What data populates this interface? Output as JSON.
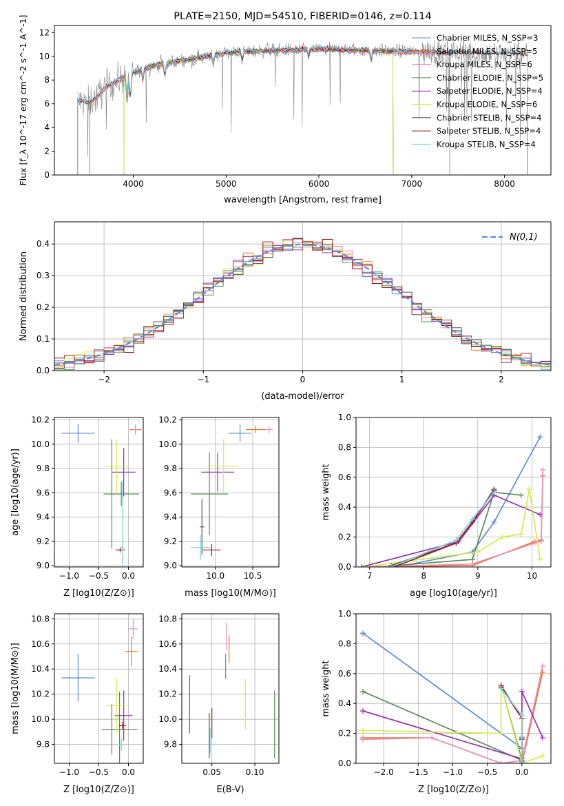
{
  "colors": {
    "chabrier_miles": "#5b8bd6",
    "salpeter_miles": "#e07a2b",
    "kroupa_miles": "#f08cc0",
    "chabrier_elodie": "#5a8a5a",
    "salpeter_elodie": "#9a2fb0",
    "kroupa_elodie": "#d6ec4a",
    "chabrier_stelib": "#555555",
    "salpeter_stelib": "#a01818",
    "kroupa_stelib": "#7dd3df",
    "data": "#808080"
  },
  "chart_data": [
    {
      "id": "spectrum",
      "type": "line",
      "title": "PLATE=2150, MJD=54510, FIBERID=0146, z=0.114",
      "xlabel": "wavelength [Angstrom, rest frame]",
      "ylabel": "Flux [f_λ 10^-17 erg cm^-2 s^-1 A^-1]",
      "xlim": [
        3150,
        8500
      ],
      "ylim": [
        0,
        12.6
      ],
      "xticks": [
        4000,
        5000,
        6000,
        7000,
        8000
      ],
      "yticks": [
        0,
        2,
        4,
        6,
        8,
        10,
        12
      ],
      "continuum": {
        "x": [
          3400,
          3500,
          3600,
          3700,
          3800,
          3900,
          4000,
          4200,
          4500,
          5000,
          5500,
          6000,
          6500,
          7000,
          7500,
          8000,
          8250
        ],
        "y": [
          6.3,
          6.0,
          6.5,
          7.4,
          7.8,
          8.2,
          8.6,
          9.2,
          9.6,
          10.3,
          10.5,
          10.6,
          10.5,
          10.4,
          10.3,
          10.2,
          10.1
        ]
      },
      "legend": [
        "Chabrier MILES, N_SSP=3",
        "Salpeter MILES, N_SSP=5",
        "Kroupa MILES, N_SSP=6",
        "Chabrier ELODIE, N_SSP=5",
        "Salpeter ELODIE, N_SSP=4",
        "Kroupa ELODIE, N_SSP=6",
        "Chabrier STELIB, N_SSP=4",
        "Salpeter STELIB, N_SSP=4",
        "Kroupa STELIB, N_SSP=4"
      ]
    },
    {
      "id": "residuals",
      "type": "bar",
      "xlabel": "(data-model)/error",
      "ylabel": "Normed distribution",
      "xlim": [
        -2.5,
        2.5
      ],
      "ylim": [
        0,
        0.47
      ],
      "xticks": [
        -2,
        -1,
        0,
        1,
        2
      ],
      "yticks": [
        0.0,
        0.1,
        0.2,
        0.3,
        0.4
      ],
      "legend": "N(0,1)",
      "bin_width": 0.1
    },
    {
      "id": "age_vs_Z",
      "type": "scatter",
      "xlabel": "Z [log10(Z/Z⊙)]",
      "ylabel": "age [log10(age/yr)]",
      "xlim": [
        -1.25,
        0.25
      ],
      "ylim": [
        8.99,
        10.22
      ],
      "xticks": [
        -1.0,
        -0.5,
        0.0
      ],
      "yticks": [
        9.0,
        9.2,
        9.4,
        9.6,
        9.8,
        10.0,
        10.2
      ],
      "points": [
        {
          "x": -0.85,
          "y": 10.09,
          "xerr": 0.28,
          "yerr": 0.08,
          "c": "chabrier_miles"
        },
        {
          "x": 0.12,
          "y": 10.12,
          "xerr": 0.1,
          "yerr": 0.04,
          "c": "salpeter_miles"
        },
        {
          "x": 0.12,
          "y": 10.12,
          "xerr": 0.05,
          "yerr": 0.03,
          "c": "kroupa_miles"
        },
        {
          "x": -0.12,
          "y": 9.59,
          "xerr": 0.3,
          "yerr": 0.1,
          "c": "chabrier_elodie"
        },
        {
          "x": -0.08,
          "y": 9.77,
          "xerr": 0.2,
          "yerr": 0.2,
          "c": "salpeter_elodie"
        },
        {
          "x": -0.2,
          "y": 9.82,
          "xerr": 0.2,
          "yerr": 0.22,
          "c": "kroupa_elodie"
        },
        {
          "x": -0.28,
          "y": 9.59,
          "xerr": 0.05,
          "yerr": 0.45,
          "c": "chabrier_elodie"
        },
        {
          "x": -0.14,
          "y": 9.13,
          "xerr": 0.08,
          "yerr": 0.02,
          "c": "salpeter_stelib"
        },
        {
          "x": -0.1,
          "y": 9.15,
          "xerr": 0.05,
          "yerr": 0.55,
          "c": "kroupa_stelib"
        }
      ]
    },
    {
      "id": "age_vs_mass",
      "type": "scatter",
      "xlabel": "mass [log10(M/M⊙)]",
      "ylabel": "",
      "xlim": [
        9.55,
        10.85
      ],
      "ylim": [
        8.99,
        10.22
      ],
      "xticks": [
        10.0,
        10.5
      ],
      "yticks": [
        9.0,
        9.2,
        9.4,
        9.6,
        9.8,
        10.0,
        10.2
      ],
      "points": [
        {
          "x": 10.33,
          "y": 10.09,
          "xerr": 0.15,
          "yerr": 0.07,
          "c": "chabrier_miles"
        },
        {
          "x": 10.54,
          "y": 10.12,
          "xerr": 0.13,
          "yerr": 0.03,
          "c": "salpeter_miles"
        },
        {
          "x": 10.72,
          "y": 10.12,
          "xerr": 0.05,
          "yerr": 0.03,
          "c": "kroupa_miles"
        },
        {
          "x": 9.92,
          "y": 9.59,
          "xerr": 0.25,
          "yerr": 0.34,
          "c": "chabrier_elodie"
        },
        {
          "x": 10.03,
          "y": 9.77,
          "xerr": 0.22,
          "yerr": 0.16,
          "c": "salpeter_elodie"
        },
        {
          "x": 10.11,
          "y": 9.82,
          "xerr": 0.21,
          "yerr": 0.22,
          "c": "kroupa_elodie"
        },
        {
          "x": 9.82,
          "y": 9.32,
          "xerr": 0.03,
          "yerr": 0.23,
          "c": "chabrier_stelib"
        },
        {
          "x": 9.95,
          "y": 9.13,
          "xerr": 0.12,
          "yerr": 0.05,
          "c": "salpeter_stelib"
        },
        {
          "x": 9.8,
          "y": 9.15,
          "xerr": 0.13,
          "yerr": 0.1,
          "c": "kroupa_stelib"
        }
      ]
    },
    {
      "id": "mw_vs_age",
      "type": "line",
      "xlabel": "age [log10(age/yr)]",
      "ylabel": "mass weight",
      "xlim": [
        6.75,
        10.35
      ],
      "ylim": [
        0,
        1.0
      ],
      "xticks": [
        7,
        8,
        9,
        10
      ],
      "yticks": [
        0.0,
        0.2,
        0.4,
        0.6,
        0.8,
        1.0
      ],
      "series": [
        {
          "c": "chabrier_miles",
          "x": [
            7.5,
            8.9,
            9.3,
            10.15
          ],
          "y": [
            0.0,
            0.1,
            0.3,
            0.87
          ]
        },
        {
          "c": "salpeter_miles",
          "x": [
            6.9,
            8.9,
            10.05,
            10.17,
            10.2
          ],
          "y": [
            0.0,
            0.01,
            0.17,
            0.18,
            0.61
          ]
        },
        {
          "c": "kroupa_miles",
          "x": [
            6.9,
            8.9,
            10.05,
            10.17,
            10.2
          ],
          "y": [
            0.0,
            0.02,
            0.16,
            0.17,
            0.65
          ]
        },
        {
          "c": "chabrier_elodie",
          "x": [
            7.5,
            8.9,
            9.3,
            9.8
          ],
          "y": [
            0.01,
            0.05,
            0.5,
            0.48
          ]
        },
        {
          "c": "salpeter_elodie",
          "x": [
            6.85,
            8.65,
            9.3,
            10.15
          ],
          "y": [
            0.0,
            0.17,
            0.48,
            0.35
          ]
        },
        {
          "c": "kroupa_elodie",
          "x": [
            6.9,
            9.0,
            9.45,
            9.8,
            9.95,
            10.15
          ],
          "y": [
            0.0,
            0.1,
            0.2,
            0.22,
            0.52,
            0.05
          ]
        },
        {
          "c": "chabrier_stelib",
          "x": [
            7.4,
            8.6,
            8.9,
            9.3
          ],
          "y": [
            0.01,
            0.16,
            0.3,
            0.52
          ]
        },
        {
          "c": "salpeter_stelib",
          "x": [
            7.45,
            8.6,
            8.9,
            9.3
          ],
          "y": [
            0.0,
            0.16,
            0.3,
            0.51
          ]
        },
        {
          "c": "kroupa_stelib",
          "x": [
            7.4,
            8.6,
            8.9,
            9.3
          ],
          "y": [
            0.0,
            0.18,
            0.32,
            0.5
          ]
        }
      ]
    },
    {
      "id": "mass_vs_Z",
      "type": "scatter",
      "xlabel": "Z [log10(Z/Z⊙)]",
      "ylabel": "mass [log10(M/M⊙)]",
      "xlim": [
        -1.25,
        0.25
      ],
      "ylim": [
        9.65,
        10.84
      ],
      "xticks": [
        -1.0,
        -0.5,
        0.0
      ],
      "yticks": [
        9.8,
        10.0,
        10.2,
        10.4,
        10.6,
        10.8
      ],
      "points": [
        {
          "x": -0.85,
          "y": 10.33,
          "xerr": 0.28,
          "yerr": 0.19,
          "c": "chabrier_miles"
        },
        {
          "x": 0.05,
          "y": 10.54,
          "xerr": 0.1,
          "yerr": 0.12,
          "c": "salpeter_miles"
        },
        {
          "x": 0.08,
          "y": 10.72,
          "xerr": 0.08,
          "yerr": 0.08,
          "c": "kroupa_miles"
        },
        {
          "x": -0.15,
          "y": 9.92,
          "xerr": 0.3,
          "yerr": 0.3,
          "c": "chabrier_elodie"
        },
        {
          "x": -0.08,
          "y": 10.03,
          "xerr": 0.15,
          "yerr": 0.2,
          "c": "salpeter_elodie"
        },
        {
          "x": -0.2,
          "y": 10.11,
          "xerr": 0.15,
          "yerr": 0.22,
          "c": "kroupa_elodie"
        },
        {
          "x": -0.28,
          "y": 9.92,
          "xerr": 0.03,
          "yerr": 0.2,
          "c": "chabrier_elodie"
        },
        {
          "x": -0.1,
          "y": 9.95,
          "xerr": 0.06,
          "yerr": 0.03,
          "c": "salpeter_stelib"
        },
        {
          "x": -0.12,
          "y": 9.8,
          "xerr": 0.06,
          "yerr": 0.05,
          "c": "kroupa_stelib"
        }
      ]
    },
    {
      "id": "mass_vs_ebv",
      "type": "scatter",
      "xlabel": "E(B-V)",
      "ylabel": "",
      "xlim": [
        0.015,
        0.128
      ],
      "ylim": [
        9.65,
        10.84
      ],
      "xticks": [
        0.05,
        0.1
      ],
      "yticks": [
        9.8,
        10.0,
        10.2,
        10.4,
        10.6,
        10.8
      ],
      "points": [
        {
          "x": 0.066,
          "y": 10.42,
          "yerr": 0.1,
          "c": "chabrier_miles"
        },
        {
          "x": 0.07,
          "y": 10.56,
          "yerr": 0.11,
          "c": "salpeter_miles"
        },
        {
          "x": 0.067,
          "y": 10.66,
          "yerr": 0.11,
          "c": "kroupa_miles"
        },
        {
          "x": 0.123,
          "y": 9.96,
          "yerr": 0.27,
          "c": "chabrier_elodie"
        },
        {
          "x": 0.024,
          "y": 10.12,
          "yerr": 0.23,
          "c": "salpeter_elodie"
        },
        {
          "x": 0.089,
          "y": 10.12,
          "yerr": 0.2,
          "c": "kroupa_elodie"
        },
        {
          "x": 0.047,
          "y": 9.87,
          "yerr": 0.18,
          "c": "chabrier_stelib"
        },
        {
          "x": 0.05,
          "y": 9.97,
          "yerr": 0.12,
          "c": "salpeter_stelib"
        },
        {
          "x": 0.048,
          "y": 9.83,
          "yerr": 0.1,
          "c": "kroupa_stelib"
        }
      ]
    },
    {
      "id": "mw_vs_Z",
      "type": "line",
      "xlabel": "Z [log10(Z/Z⊙)]",
      "ylabel": "mass weight",
      "xlim": [
        -2.4,
        0.42
      ],
      "ylim": [
        0,
        1.0
      ],
      "xticks": [
        -2.0,
        -1.5,
        -1.0,
        -0.5,
        0.0
      ],
      "yticks": [
        0.0,
        0.2,
        0.4,
        0.6,
        0.8,
        1.0
      ],
      "series": [
        {
          "c": "chabrier_miles",
          "x": [
            -2.3,
            0.0,
            0.0
          ],
          "y": [
            0.87,
            0.1,
            0.01
          ]
        },
        {
          "c": "salpeter_miles",
          "x": [
            -2.3,
            -1.3,
            -0.3,
            0.0,
            0.3
          ],
          "y": [
            0.17,
            0.17,
            0.0,
            0.0,
            0.61
          ]
        },
        {
          "c": "kroupa_miles",
          "x": [
            -2.3,
            -1.3,
            -0.3,
            0.0,
            0.3
          ],
          "y": [
            0.16,
            0.17,
            0.0,
            0.02,
            0.65
          ]
        },
        {
          "c": "chabrier_elodie",
          "x": [
            -2.3,
            0.0,
            -0.3,
            -0.3
          ],
          "y": [
            0.48,
            0.02,
            0.52,
            0.52
          ]
        },
        {
          "c": "salpeter_elodie",
          "x": [
            -2.3,
            0.0,
            0.0,
            0.3
          ],
          "y": [
            0.35,
            0.03,
            0.48,
            0.17
          ]
        },
        {
          "c": "kroupa_elodie",
          "x": [
            -2.3,
            -0.3,
            -0.3,
            0.0,
            0.3
          ],
          "y": [
            0.22,
            0.2,
            0.52,
            0.0,
            0.05
          ]
        },
        {
          "c": "chabrier_stelib",
          "x": [
            -0.3,
            0.0,
            0.0,
            0.0
          ],
          "y": [
            0.52,
            0.3,
            0.17,
            0.0
          ]
        },
        {
          "c": "salpeter_stelib",
          "x": [
            -0.3,
            0.0,
            0.0,
            0.0
          ],
          "y": [
            0.51,
            0.3,
            0.16,
            0.0
          ]
        },
        {
          "c": "kroupa_stelib",
          "x": [
            -0.3,
            0.0,
            0.0,
            0.0
          ],
          "y": [
            0.5,
            0.32,
            0.18,
            0.0
          ]
        }
      ]
    }
  ]
}
